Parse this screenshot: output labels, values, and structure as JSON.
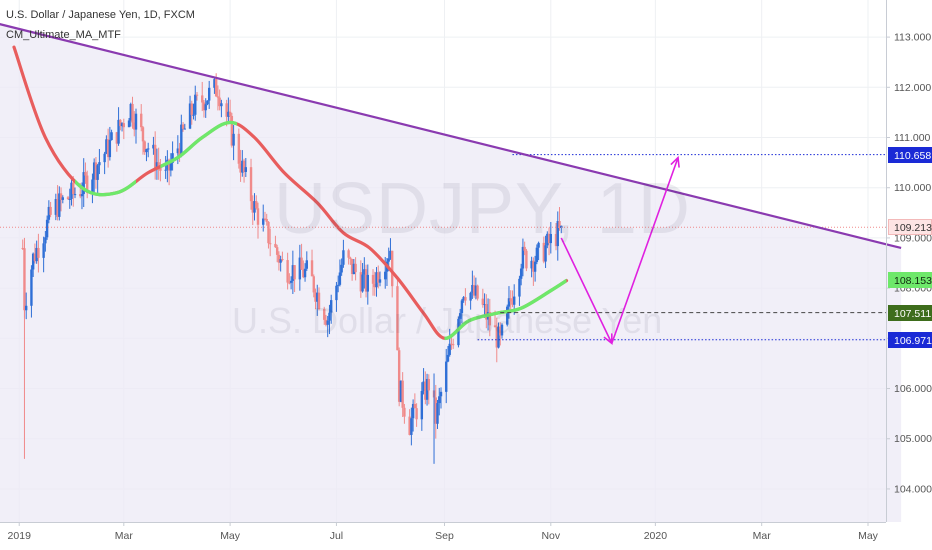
{
  "header": {
    "symbol_line": "U.S. Dollar / Japanese Yen, 1D, FXCM",
    "indicator": "CM_Ultimate_MA_MTF"
  },
  "watermark": {
    "symbol": "USDJPY, 1D",
    "description": "U.S. Dollar / Japanese Yen"
  },
  "colors": {
    "background": "#ffffff",
    "triangle_fill": "#eceaf6",
    "trendline": "#8a3ab0",
    "ma_down": "#e85d5d",
    "ma_up": "#6ee86a",
    "candle_up": "#2f6fd6",
    "candle_down": "#f08a8a",
    "projection_arrow": "#e020e0",
    "level_blue": "#1a2ad6",
    "level_green": "#3e6d1c",
    "current_price": "#f08a8a"
  },
  "chart_data": {
    "type": "candlestick",
    "symbol": "USDJPY",
    "timeframe": "1D",
    "ylim": [
      103.7,
      113.5
    ],
    "y_ticks": [
      "113.000",
      "112.000",
      "111.000",
      "110.000",
      "109.000",
      "108.000",
      "107.000",
      "106.000",
      "105.000",
      "104.000"
    ],
    "x_ticks": [
      "2019",
      "Mar",
      "May",
      "Jul",
      "Sep",
      "Nov",
      "2020",
      "Mar",
      "May"
    ],
    "price_labels": [
      {
        "label": "110.658",
        "value": 110.658,
        "kind": "level_blue"
      },
      {
        "label": "109.213",
        "value": 109.213,
        "kind": "current_price"
      },
      {
        "label": "108.153",
        "value": 108.153,
        "kind": "ma_up"
      },
      {
        "label": "107.511",
        "value": 107.511,
        "kind": "level_green"
      },
      {
        "label": "106.971",
        "value": 106.971,
        "kind": "level_blue"
      }
    ],
    "trendline": {
      "start": {
        "date": "2018-12-15",
        "price": 113.3
      },
      "end": {
        "date": "2020-05-20",
        "price": 108.8
      }
    },
    "moving_average": {
      "dates": [
        "2018-12-28",
        "2019-01-15",
        "2019-02-05",
        "2019-02-25",
        "2019-03-15",
        "2019-04-01",
        "2019-04-15",
        "2019-05-01",
        "2019-05-15",
        "2019-06-01",
        "2019-06-20",
        "2019-07-05",
        "2019-07-20",
        "2019-08-05",
        "2019-08-20",
        "2019-09-01",
        "2019-09-15",
        "2019-10-01",
        "2019-10-15",
        "2019-11-01",
        "2019-11-10"
      ],
      "values": [
        112.8,
        111.0,
        110.0,
        109.9,
        110.3,
        110.6,
        111.0,
        111.3,
        111.0,
        110.3,
        109.7,
        109.1,
        108.8,
        108.2,
        107.5,
        107.0,
        107.35,
        107.5,
        107.6,
        107.95,
        108.15
      ]
    },
    "ma_up_segments": [
      [
        "2019-02-01",
        "2019-03-08"
      ],
      [
        "2019-03-22",
        "2019-05-05"
      ],
      [
        "2019-09-01",
        "2019-11-10"
      ]
    ],
    "candle_anchors": {
      "dates": [
        "2019-01-02",
        "2019-01-03",
        "2019-01-08",
        "2019-01-20",
        "2019-02-05",
        "2019-02-20",
        "2019-03-05",
        "2019-03-12",
        "2019-03-25",
        "2019-04-10",
        "2019-04-24",
        "2019-05-06",
        "2019-05-15",
        "2019-06-01",
        "2019-06-15",
        "2019-06-26",
        "2019-07-05",
        "2019-07-20",
        "2019-08-01",
        "2019-08-06",
        "2019-08-12",
        "2019-08-23",
        "2019-08-27",
        "2019-09-05",
        "2019-09-12",
        "2019-09-20",
        "2019-10-03",
        "2019-10-15",
        "2019-10-24",
        "2019-11-05"
      ],
      "closes": [
        108.8,
        107.7,
        108.6,
        109.6,
        110.0,
        110.8,
        111.6,
        111.0,
        110.2,
        111.6,
        112.0,
        110.6,
        109.6,
        108.4,
        108.3,
        107.4,
        108.6,
        108.0,
        108.8,
        106.0,
        105.3,
        106.1,
        105.4,
        106.9,
        108.0,
        107.8,
        106.9,
        108.6,
        108.6,
        109.1
      ]
    },
    "projection": {
      "dates": [
        "2019-11-07",
        "2019-12-06",
        "2020-01-13"
      ],
      "prices": [
        109.0,
        106.9,
        110.6
      ]
    }
  }
}
